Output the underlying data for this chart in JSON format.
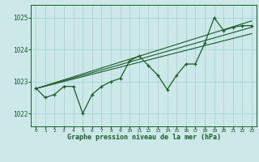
{
  "title": "Graphe pression niveau de la mer (hPa)",
  "background_color": "#cce8e8",
  "grid_color": "#aad4d4",
  "line_color": "#1a5c2a",
  "xlim": [
    -0.5,
    23.5
  ],
  "ylim": [
    1021.6,
    1025.4
  ],
  "yticks": [
    1022,
    1023,
    1024,
    1025
  ],
  "xticks": [
    0,
    1,
    2,
    3,
    4,
    5,
    6,
    7,
    8,
    9,
    10,
    11,
    12,
    13,
    14,
    15,
    16,
    17,
    18,
    19,
    20,
    21,
    22,
    23
  ],
  "hours": [
    0,
    1,
    2,
    3,
    4,
    5,
    6,
    7,
    8,
    9,
    10,
    11,
    12,
    13,
    14,
    15,
    16,
    17,
    18,
    19,
    20,
    21,
    22,
    23
  ],
  "pressure": [
    1022.8,
    1022.5,
    1022.6,
    1022.85,
    1022.85,
    1022.0,
    1022.6,
    1022.85,
    1023.0,
    1023.1,
    1023.65,
    1023.8,
    1023.5,
    1023.2,
    1022.75,
    1023.2,
    1023.55,
    1023.55,
    1024.2,
    1025.0,
    1024.6,
    1024.7,
    1024.75,
    1024.75
  ],
  "trend_line1": [
    [
      0,
      1022.78
    ],
    [
      23,
      1024.9
    ]
  ],
  "trend_line2": [
    [
      0,
      1022.78
    ],
    [
      23,
      1024.7
    ]
  ],
  "trend_line3": [
    [
      0,
      1022.78
    ],
    [
      23,
      1024.5
    ]
  ]
}
